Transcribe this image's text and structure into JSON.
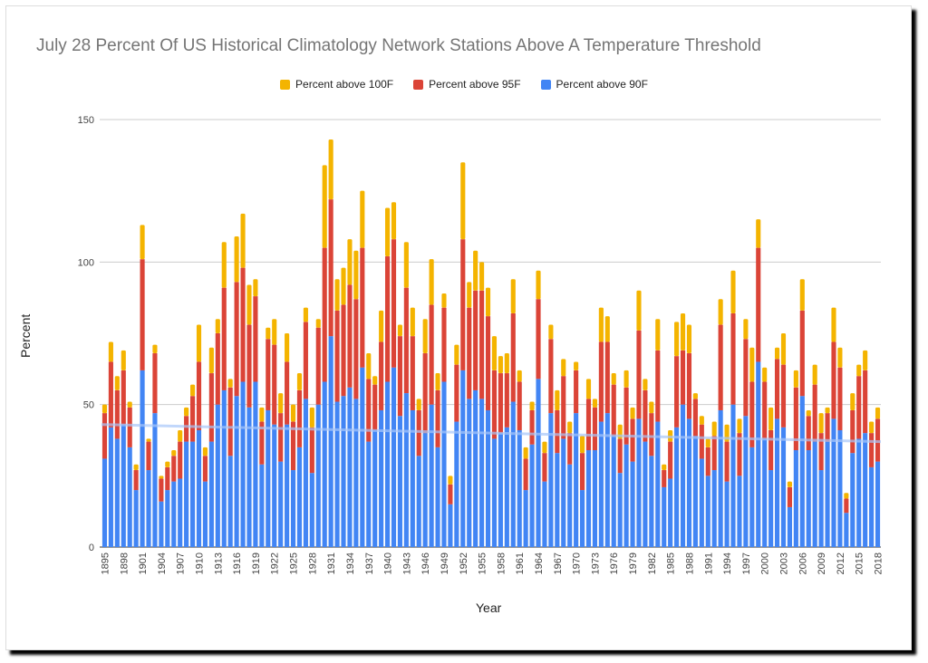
{
  "chart_data": {
    "type": "bar",
    "stacked": true,
    "title": "July 28 Percent Of US Historical Climatology Network Stations Above A Temperature Threshold",
    "xlabel": "Year",
    "ylabel": "Percent",
    "ylim": [
      0,
      150
    ],
    "yticks": [
      0,
      50,
      100,
      150
    ],
    "grid": true,
    "legend_position": "top",
    "x_start": 1895,
    "x_end": 2018,
    "x_tick_step": 3,
    "series": [
      {
        "name": "Percent above 90F",
        "color": "#4285f4",
        "values": [
          31,
          42,
          38,
          43,
          35,
          20,
          62,
          27,
          47,
          16,
          20,
          23,
          24,
          37,
          37,
          41,
          23,
          37,
          50,
          55,
          32,
          53,
          58,
          49,
          58,
          29,
          48,
          43,
          30,
          43,
          27,
          35,
          52,
          26,
          50,
          58,
          74,
          51,
          53,
          56,
          52,
          63,
          37,
          41,
          48,
          58,
          63,
          46,
          54,
          48,
          32,
          40,
          50,
          35,
          58,
          15,
          44,
          62,
          52,
          55,
          52,
          48,
          38,
          40,
          42,
          51,
          41,
          20,
          36,
          59,
          23,
          47,
          33,
          38,
          29,
          47,
          20,
          34,
          34,
          44,
          47,
          39,
          26,
          36,
          30,
          45,
          37,
          32,
          44,
          21,
          24,
          42,
          50,
          45,
          39,
          31,
          25,
          27,
          48,
          23,
          50,
          25,
          46,
          35,
          65,
          38,
          27,
          45,
          42,
          14,
          34,
          53,
          34,
          37,
          27,
          37,
          45,
          41,
          12,
          33,
          38,
          40,
          28,
          30
        ]
      },
      {
        "name": "Percent above 95F",
        "color": "#db4437",
        "values": [
          16,
          23,
          17,
          19,
          14,
          7,
          39,
          10,
          21,
          8,
          8,
          9,
          13,
          9,
          16,
          24,
          9,
          24,
          25,
          36,
          24,
          40,
          40,
          29,
          30,
          15,
          25,
          28,
          17,
          22,
          17,
          20,
          27,
          16,
          27,
          47,
          48,
          32,
          32,
          36,
          35,
          42,
          22,
          16,
          24,
          44,
          45,
          28,
          37,
          26,
          16,
          28,
          35,
          20,
          26,
          7,
          20,
          46,
          32,
          35,
          38,
          33,
          24,
          21,
          19,
          31,
          17,
          11,
          12,
          28,
          10,
          26,
          15,
          22,
          11,
          15,
          13,
          18,
          15,
          28,
          25,
          18,
          12,
          20,
          15,
          31,
          18,
          15,
          25,
          6,
          13,
          25,
          19,
          23,
          13,
          12,
          10,
          12,
          30,
          14,
          32,
          15,
          27,
          23,
          40,
          20,
          14,
          21,
          22,
          7,
          22,
          30,
          12,
          20,
          13,
          10,
          27,
          22,
          5,
          15,
          22,
          22,
          12,
          15
        ]
      },
      {
        "name": "Percent above 100F",
        "color": "#f4b400",
        "values": [
          3,
          7,
          5,
          7,
          2,
          2,
          12,
          1,
          3,
          1,
          2,
          2,
          4,
          3,
          4,
          13,
          3,
          9,
          5,
          16,
          3,
          16,
          19,
          14,
          6,
          5,
          4,
          9,
          7,
          10,
          6,
          6,
          5,
          7,
          3,
          29,
          21,
          11,
          13,
          16,
          17,
          20,
          9,
          3,
          11,
          17,
          13,
          4,
          16,
          10,
          4,
          12,
          16,
          6,
          5,
          3,
          7,
          27,
          9,
          14,
          10,
          10,
          12,
          6,
          7,
          12,
          4,
          4,
          3,
          10,
          4,
          5,
          7,
          6,
          4,
          3,
          6,
          7,
          3,
          12,
          9,
          4,
          5,
          6,
          4,
          14,
          4,
          4,
          11,
          2,
          4,
          12,
          13,
          10,
          2,
          3,
          3,
          5,
          9,
          6,
          15,
          5,
          7,
          12,
          10,
          5,
          8,
          4,
          11,
          2,
          6,
          11,
          2,
          7,
          7,
          2,
          12,
          7,
          2,
          6,
          4,
          7,
          4,
          4
        ]
      }
    ],
    "trendline": {
      "series": "Percent above 90F",
      "start": 43,
      "end": 37,
      "color": "#a8c7fa"
    }
  },
  "legend": {
    "items": [
      {
        "label": "Percent above 100F",
        "color": "#f4b400"
      },
      {
        "label": "Percent above 95F",
        "color": "#db4437"
      },
      {
        "label": "Percent above 90F",
        "color": "#4285f4"
      }
    ]
  }
}
